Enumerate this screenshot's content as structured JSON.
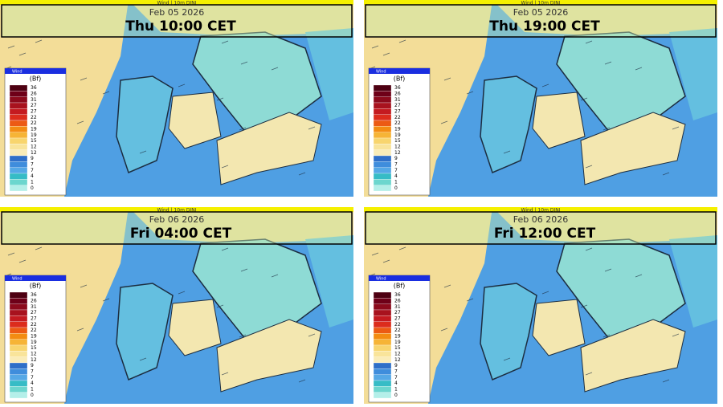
{
  "panels": [
    {
      "product": "Wind | 10m DINI",
      "date": "Feb 05 2026",
      "time": "Thu 10:00 CET",
      "legend_title": "Wind",
      "legend_unit": "(Bf)",
      "legend_labels": [
        "36",
        "26",
        "31",
        "27",
        "27",
        "22",
        "22",
        "19",
        "19",
        "15",
        "12",
        "12",
        "9",
        "7",
        "7",
        "4",
        "1",
        "0"
      ]
    },
    {
      "product": "Wind | 10m DINI",
      "date": "Feb 05 2026",
      "time": "Thu 19:00 CET",
      "legend_title": "Wind",
      "legend_unit": "(Bf)",
      "legend_labels": [
        "36",
        "26",
        "31",
        "27",
        "27",
        "22",
        "22",
        "19",
        "19",
        "15",
        "12",
        "12",
        "9",
        "7",
        "7",
        "4",
        "1",
        "0"
      ]
    },
    {
      "product": "Wind | 10m DINI",
      "date": "Feb 06 2026",
      "time": "Fri 04:00 CET",
      "legend_title": "Wind",
      "legend_unit": "(Bf)",
      "legend_labels": [
        "36",
        "26",
        "31",
        "27",
        "27",
        "22",
        "22",
        "19",
        "19",
        "15",
        "12",
        "12",
        "9",
        "7",
        "7",
        "4",
        "1",
        "0"
      ]
    },
    {
      "product": "Wind | 10m DINI",
      "date": "Feb 06 2026",
      "time": "Fri 12:00 CET",
      "legend_title": "Wind",
      "legend_unit": "(Bf)",
      "legend_labels": [
        "36",
        "26",
        "31",
        "27",
        "27",
        "22",
        "22",
        "19",
        "19",
        "15",
        "12",
        "12",
        "9",
        "7",
        "7",
        "4",
        "1",
        "0"
      ]
    }
  ]
}
